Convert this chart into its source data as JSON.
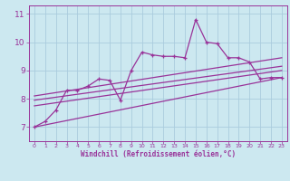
{
  "xlabel": "Windchill (Refroidissement éolien,°C)",
  "xlim": [
    -0.5,
    23.5
  ],
  "ylim": [
    6.5,
    11.3
  ],
  "yticks": [
    7,
    8,
    9,
    10,
    11
  ],
  "xticks": [
    0,
    1,
    2,
    3,
    4,
    5,
    6,
    7,
    8,
    9,
    10,
    11,
    12,
    13,
    14,
    15,
    16,
    17,
    18,
    19,
    20,
    21,
    22,
    23
  ],
  "bg_color": "#cce8f0",
  "grid_color": "#aaccdd",
  "line_color": "#993399",
  "series_main": [
    [
      0,
      7.0
    ],
    [
      1,
      7.2
    ],
    [
      2,
      7.6
    ],
    [
      3,
      8.3
    ],
    [
      4,
      8.3
    ],
    [
      5,
      8.45
    ],
    [
      6,
      8.7
    ],
    [
      7,
      8.65
    ],
    [
      8,
      7.95
    ],
    [
      9,
      9.0
    ],
    [
      10,
      9.65
    ],
    [
      11,
      9.55
    ],
    [
      12,
      9.5
    ],
    [
      13,
      9.5
    ],
    [
      14,
      9.45
    ],
    [
      15,
      10.8
    ],
    [
      16,
      10.0
    ],
    [
      17,
      9.95
    ],
    [
      18,
      9.45
    ],
    [
      19,
      9.45
    ],
    [
      20,
      9.3
    ],
    [
      21,
      8.7
    ],
    [
      22,
      8.75
    ],
    [
      23,
      8.75
    ]
  ],
  "series_reg1": [
    [
      0,
      7.0
    ],
    [
      23,
      8.75
    ]
  ],
  "series_reg2": [
    [
      0,
      7.75
    ],
    [
      23,
      9.0
    ]
  ],
  "series_reg3": [
    [
      0,
      7.95
    ],
    [
      23,
      9.15
    ]
  ],
  "series_reg4": [
    [
      0,
      8.1
    ],
    [
      23,
      9.45
    ]
  ]
}
